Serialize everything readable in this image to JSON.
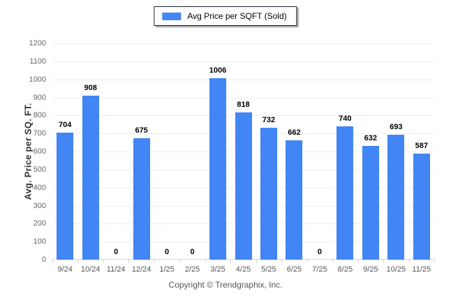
{
  "legend": {
    "label": "Avg Price per SQFT (Sold)"
  },
  "chart_data": {
    "type": "bar",
    "categories": [
      "9/24",
      "10/24",
      "11/24",
      "12/24",
      "1/25",
      "2/25",
      "3/25",
      "4/25",
      "5/25",
      "6/25",
      "7/25",
      "8/25",
      "9/25",
      "10/25",
      "11/25"
    ],
    "values": [
      704,
      908,
      0,
      675,
      0,
      0,
      1006,
      818,
      732,
      662,
      0,
      740,
      632,
      693,
      587
    ],
    "title": "",
    "xlabel": "",
    "ylabel": "Avg. Price per SQ. FT.",
    "ylim": [
      0,
      1200
    ],
    "ytick_step": 100,
    "grid": true,
    "legend_position": "top-center",
    "bar_color": "#4285f4",
    "gridline_color": "#eeeeee"
  },
  "footer": {
    "copyright": "Copyright © Trendgraphix, Inc."
  }
}
